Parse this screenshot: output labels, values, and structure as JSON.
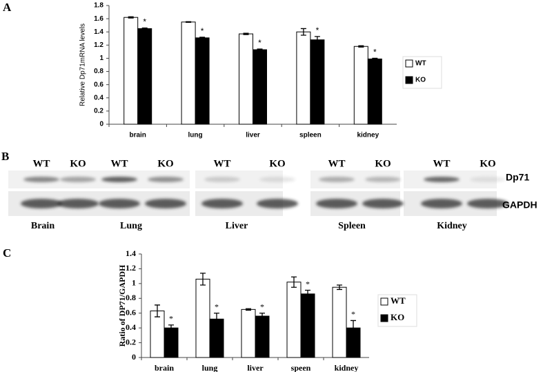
{
  "chart_data": [
    {
      "type": "bar",
      "panel": "A",
      "ylabel": "Relative Dp71mRNA levels",
      "categories": [
        "brain",
        "lung",
        "liver",
        "spleen",
        "kidney"
      ],
      "series": [
        {
          "name": "WT",
          "color": "#ffffff",
          "values": [
            1.62,
            1.55,
            1.37,
            1.4,
            1.18
          ],
          "errors": [
            0.01,
            0.005,
            0.01,
            0.05,
            0.01
          ]
        },
        {
          "name": "KO",
          "color": "#000000",
          "values": [
            1.45,
            1.31,
            1.13,
            1.28,
            0.99
          ],
          "errors": [
            0.01,
            0.01,
            0.01,
            0.05,
            0.01
          ]
        }
      ],
      "significance": [
        "*",
        "*",
        "*",
        "*",
        "*"
      ],
      "ylim": [
        0,
        1.8
      ],
      "yticks": [
        0,
        0.2,
        0.4,
        0.6,
        0.8,
        1,
        1.2,
        1.4,
        1.6,
        1.8
      ],
      "grid": false,
      "legend": "right"
    },
    {
      "type": "bar",
      "panel": "C",
      "ylabel": "Ratio of DP71/GAPDH",
      "categories": [
        "brain",
        "lung",
        "liver",
        "speen",
        "kidney"
      ],
      "series": [
        {
          "name": "WT",
          "color": "#ffffff",
          "values": [
            0.63,
            1.06,
            0.65,
            1.02,
            0.95
          ],
          "errors": [
            0.08,
            0.08,
            0.01,
            0.07,
            0.03
          ]
        },
        {
          "name": "KO",
          "color": "#000000",
          "values": [
            0.4,
            0.52,
            0.56,
            0.86,
            0.4
          ],
          "errors": [
            0.04,
            0.08,
            0.04,
            0.05,
            0.1
          ]
        }
      ],
      "significance": [
        "*",
        "*",
        "*",
        "*",
        "*"
      ],
      "ylim": [
        0,
        1.4
      ],
      "yticks": [
        0,
        0.2,
        0.4,
        0.6,
        0.8,
        1,
        1.2,
        1.4
      ],
      "grid": false,
      "legend": "right"
    }
  ],
  "blot": {
    "panel": "B",
    "lanes": [
      "WT",
      "KO",
      "WT",
      "KO",
      "WT",
      "KO",
      "WT",
      "KO",
      "WT",
      "KO"
    ],
    "rows": [
      "Dp71",
      "GAPDH"
    ],
    "tissues": [
      "Brain",
      "Lung",
      "Liver",
      "Spleen",
      "Kidney"
    ]
  }
}
